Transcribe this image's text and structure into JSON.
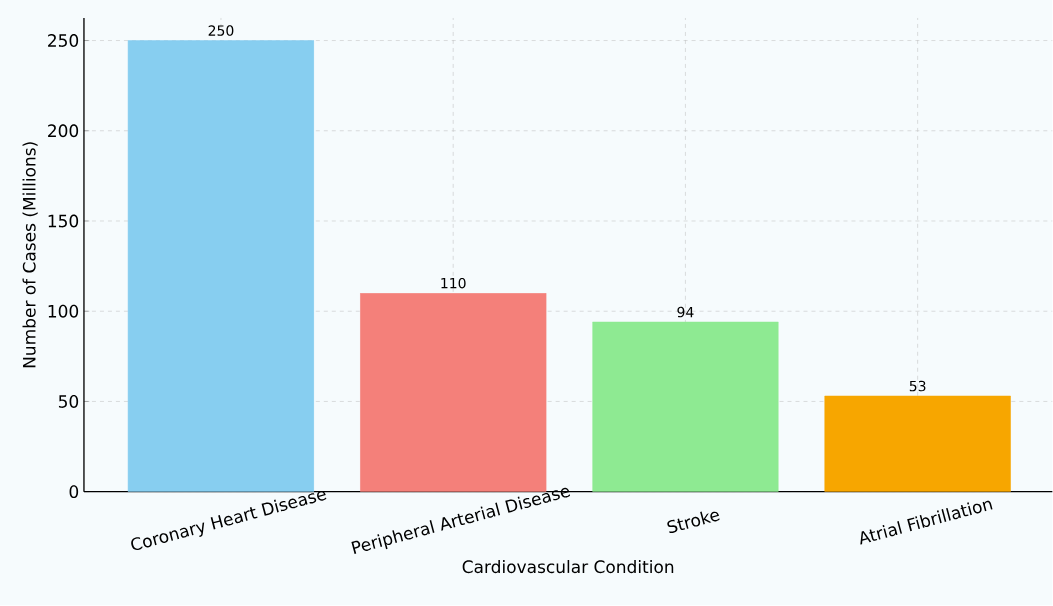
{
  "chart_data": {
    "type": "bar",
    "xlabel": "Cardiovascular Condition",
    "ylabel": "Number of Cases (Millions)",
    "categories": [
      "Coronary Heart Disease",
      "Peripheral Arterial Disease",
      "Stroke",
      "Atrial Fibrillation"
    ],
    "values": [
      250,
      110,
      94,
      53
    ],
    "colors": [
      "#87cef0",
      "#f4807a",
      "#8eea92",
      "#f7a600"
    ],
    "ylim": [
      0,
      262.5
    ],
    "yticks": [
      0,
      50,
      100,
      150,
      200,
      250
    ],
    "grid": true,
    "data_labels": true
  }
}
